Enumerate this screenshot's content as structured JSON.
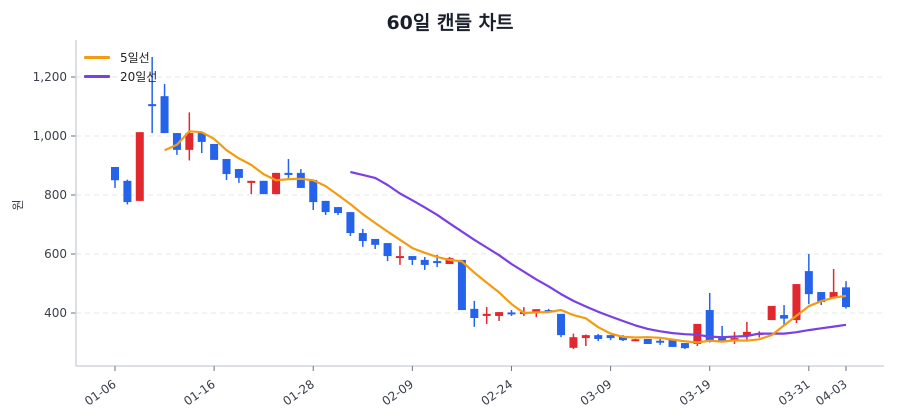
{
  "title": "60일 캔들 차트",
  "legend": [
    {
      "label": "5일선",
      "color": "#f39c12"
    },
    {
      "label": "20일선",
      "color": "#7b3fe4"
    }
  ],
  "colors": {
    "up": "#e0282e",
    "down": "#2563eb",
    "doji": "#7b6cf0",
    "grid": "#e5e7eb",
    "axis": "#d1d5db"
  },
  "chart_data": {
    "type": "candlestick",
    "title": "60일 캔들 차트",
    "xlabel": "",
    "ylabel": "원",
    "ylim": [
      220,
      1320
    ],
    "yticks": [
      400,
      600,
      800,
      1000,
      1200
    ],
    "ytick_labels": [
      "400",
      "600",
      "800",
      "1,000",
      "1,200"
    ],
    "xtick_labels": [
      {
        "index": 0,
        "label": "01-06"
      },
      {
        "index": 8,
        "label": "01-16"
      },
      {
        "index": 16,
        "label": "01-28"
      },
      {
        "index": 24,
        "label": "02-09"
      },
      {
        "index": 32,
        "label": "02-24"
      },
      {
        "index": 40,
        "label": "03-09"
      },
      {
        "index": 48,
        "label": "03-19"
      },
      {
        "index": 56,
        "label": "03-31"
      },
      {
        "index": 59,
        "label": "04-03"
      }
    ],
    "grid": true,
    "legend_position": "top-left",
    "ohlc": [
      [
        895,
        895,
        824,
        850
      ],
      [
        848,
        852,
        768,
        776
      ],
      [
        780,
        1013,
        780,
        1013
      ],
      [
        1108,
        1268,
        1010,
        1105
      ],
      [
        1135,
        1176,
        1010,
        1010
      ],
      [
        1010,
        1010,
        936,
        953
      ],
      [
        953,
        1080,
        917,
        1010
      ],
      [
        1010,
        1010,
        942,
        980
      ],
      [
        973,
        973,
        922,
        919
      ],
      [
        922,
        922,
        851,
        871
      ],
      [
        888,
        888,
        841,
        858
      ],
      [
        841,
        848,
        803,
        848
      ],
      [
        848,
        848,
        803,
        803
      ],
      [
        803,
        875,
        803,
        875
      ],
      [
        875,
        922,
        858,
        868
      ],
      [
        875,
        888,
        824,
        824
      ],
      [
        851,
        851,
        749,
        776
      ],
      [
        780,
        780,
        732,
        742
      ],
      [
        759,
        759,
        732,
        739
      ],
      [
        742,
        742,
        661,
        671
      ],
      [
        671,
        685,
        624,
        644
      ],
      [
        651,
        651,
        617,
        631
      ],
      [
        637,
        637,
        576,
        593
      ],
      [
        590,
        627,
        563,
        593
      ],
      [
        593,
        593,
        563,
        580
      ],
      [
        580,
        590,
        546,
        563
      ],
      [
        576,
        597,
        556,
        573
      ],
      [
        566,
        590,
        566,
        586
      ],
      [
        580,
        580,
        410,
        410
      ],
      [
        414,
        441,
        353,
        383
      ],
      [
        390,
        420,
        363,
        397
      ],
      [
        390,
        403,
        373,
        403
      ],
      [
        402,
        410,
        390,
        400
      ],
      [
        398,
        420,
        390,
        403
      ],
      [
        400,
        413,
        386,
        413
      ],
      [
        410,
        414,
        400,
        407
      ],
      [
        397,
        397,
        318,
        325
      ],
      [
        282,
        330,
        278,
        318
      ],
      [
        315,
        327,
        288,
        325
      ],
      [
        325,
        329,
        305,
        312
      ],
      [
        325,
        325,
        308,
        315
      ],
      [
        322,
        325,
        305,
        308
      ],
      [
        308,
        312,
        305,
        311
      ],
      [
        312,
        312,
        295,
        295
      ],
      [
        306,
        312,
        292,
        305
      ],
      [
        312,
        312,
        285,
        285
      ],
      [
        298,
        298,
        278,
        281
      ],
      [
        295,
        363,
        288,
        363
      ],
      [
        410,
        468,
        300,
        302
      ],
      [
        315,
        356,
        305,
        305
      ],
      [
        305,
        336,
        295,
        315
      ],
      [
        325,
        370,
        310,
        336
      ],
      [
        327,
        338,
        317,
        332
      ],
      [
        376,
        424,
        376,
        424
      ],
      [
        393,
        427,
        356,
        381
      ],
      [
        376,
        498,
        366,
        498
      ],
      [
        542,
        600,
        430,
        464
      ],
      [
        471,
        471,
        427,
        437
      ],
      [
        451,
        549,
        451,
        471
      ],
      [
        487,
        508,
        415,
        420
      ]
    ],
    "ma5": [
      null,
      null,
      null,
      null,
      952,
      970,
      1016,
      1013,
      990,
      952,
      924,
      902,
      870,
      850,
      854,
      855,
      850,
      830,
      800,
      769,
      735,
      705,
      676,
      648,
      620,
      604,
      590,
      580,
      575,
      537,
      503,
      470,
      430,
      400,
      402,
      403,
      410,
      393,
      382,
      352,
      330,
      319,
      317,
      318,
      316,
      310,
      304,
      300,
      306,
      303,
      307,
      306,
      311,
      325,
      358,
      391,
      423,
      440,
      452,
      458
    ],
    "ma20": [
      null,
      null,
      null,
      null,
      null,
      null,
      null,
      null,
      null,
      null,
      null,
      null,
      null,
      null,
      null,
      null,
      null,
      null,
      null,
      878,
      868,
      858,
      834,
      805,
      782,
      758,
      733,
      704,
      676,
      648,
      622,
      596,
      566,
      540,
      514,
      490,
      464,
      441,
      422,
      404,
      388,
      373,
      358,
      346,
      338,
      332,
      328,
      326,
      320,
      318,
      320,
      322,
      330,
      330,
      330,
      335,
      342,
      348,
      354,
      360
    ]
  }
}
